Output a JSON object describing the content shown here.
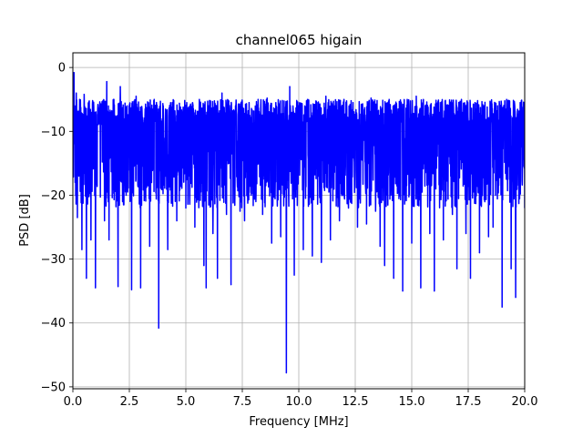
{
  "chart_data": {
    "type": "line",
    "title": "channel065 higain",
    "xlabel": "Frequency [MHz]",
    "ylabel": "PSD [dB]",
    "xlim": [
      0,
      20
    ],
    "ylim": [
      -50.3,
      2.3
    ],
    "grid": true,
    "x_ticks": [
      0.0,
      2.5,
      5.0,
      7.5,
      10.0,
      12.5,
      15.0,
      17.5,
      20.0
    ],
    "x_tick_labels": [
      "0.0",
      "2.5",
      "5.0",
      "7.5",
      "10.0",
      "12.5",
      "15.0",
      "17.5",
      "20.0"
    ],
    "y_ticks": [
      0,
      -10,
      -20,
      -30,
      -40,
      -50
    ],
    "y_tick_labels": [
      "0",
      "−10",
      "−20",
      "−30",
      "−40",
      "−50"
    ],
    "series": [
      {
        "color": "#0000ff",
        "x": [
          0.0,
          0.05,
          0.1,
          0.15,
          0.2,
          0.3,
          0.4,
          0.5,
          0.6,
          0.7,
          0.8,
          0.9,
          1.0,
          1.2,
          1.4,
          1.5,
          1.6,
          1.8,
          2.0,
          2.1,
          2.2,
          2.4,
          2.6,
          2.8,
          3.0,
          3.2,
          3.4,
          3.6,
          3.8,
          4.0,
          4.2,
          4.4,
          4.6,
          4.8,
          5.0,
          5.2,
          5.4,
          5.6,
          5.8,
          5.9,
          6.0,
          6.2,
          6.4,
          6.6,
          6.8,
          7.0,
          7.2,
          7.4,
          7.6,
          7.8,
          8.0,
          8.2,
          8.4,
          8.6,
          8.8,
          9.0,
          9.2,
          9.45,
          9.6,
          9.8,
          10.0,
          10.2,
          10.4,
          10.6,
          10.8,
          11.0,
          11.2,
          11.4,
          11.6,
          11.8,
          12.0,
          12.2,
          12.4,
          12.6,
          12.8,
          13.0,
          13.2,
          13.4,
          13.6,
          13.8,
          14.0,
          14.2,
          14.4,
          14.6,
          14.8,
          15.0,
          15.2,
          15.4,
          15.6,
          15.8,
          16.0,
          16.2,
          16.4,
          16.6,
          16.8,
          17.0,
          17.2,
          17.4,
          17.6,
          17.8,
          18.0,
          18.2,
          18.4,
          18.6,
          18.8,
          19.0,
          19.2,
          19.4,
          19.6,
          19.8,
          20.0
        ],
        "y": [
          -14.5,
          -0.8,
          -18.0,
          -4.0,
          -23.5,
          -5.0,
          -28.5,
          -4.2,
          -33.0,
          -6.0,
          -27.0,
          -5.5,
          -34.5,
          -7.0,
          -24.0,
          -2.2,
          -27.0,
          -5.0,
          -34.3,
          -3.0,
          -21.0,
          -6.0,
          -34.8,
          -4.5,
          -34.5,
          -6.5,
          -28.0,
          -5.0,
          -40.8,
          -6.0,
          -28.5,
          -5.5,
          -24.0,
          -7.0,
          -22.0,
          -6.0,
          -25.0,
          -5.0,
          -31.0,
          -34.5,
          -6.0,
          -26.0,
          -33.0,
          -4.0,
          -23.0,
          -34.0,
          -6.0,
          -22.5,
          -24.0,
          -5.5,
          -20.5,
          -5.0,
          -23.0,
          -4.8,
          -27.5,
          -6.0,
          -26.5,
          -47.8,
          -3.0,
          -32.5,
          -6.0,
          -28.5,
          -5.0,
          -29.5,
          -5.5,
          -30.5,
          -4.5,
          -27.0,
          -6.0,
          -24.0,
          -5.0,
          -22.0,
          -5.5,
          -25.0,
          -6.0,
          -24.5,
          -4.8,
          -22.5,
          -28.0,
          -31.0,
          -5.0,
          -33.0,
          -6.5,
          -35.0,
          -5.0,
          -27.5,
          -4.5,
          -34.5,
          -6.0,
          -26.0,
          -35.0,
          -5.5,
          -27.0,
          -6.0,
          -23.0,
          -31.5,
          -5.0,
          -26.0,
          -33.0,
          -5.5,
          -29.0,
          -6.0,
          -26.5,
          -25.0,
          -6.0,
          -37.5,
          -5.0,
          -31.5,
          -36.0,
          -5.5,
          -22.0
        ]
      }
    ]
  }
}
